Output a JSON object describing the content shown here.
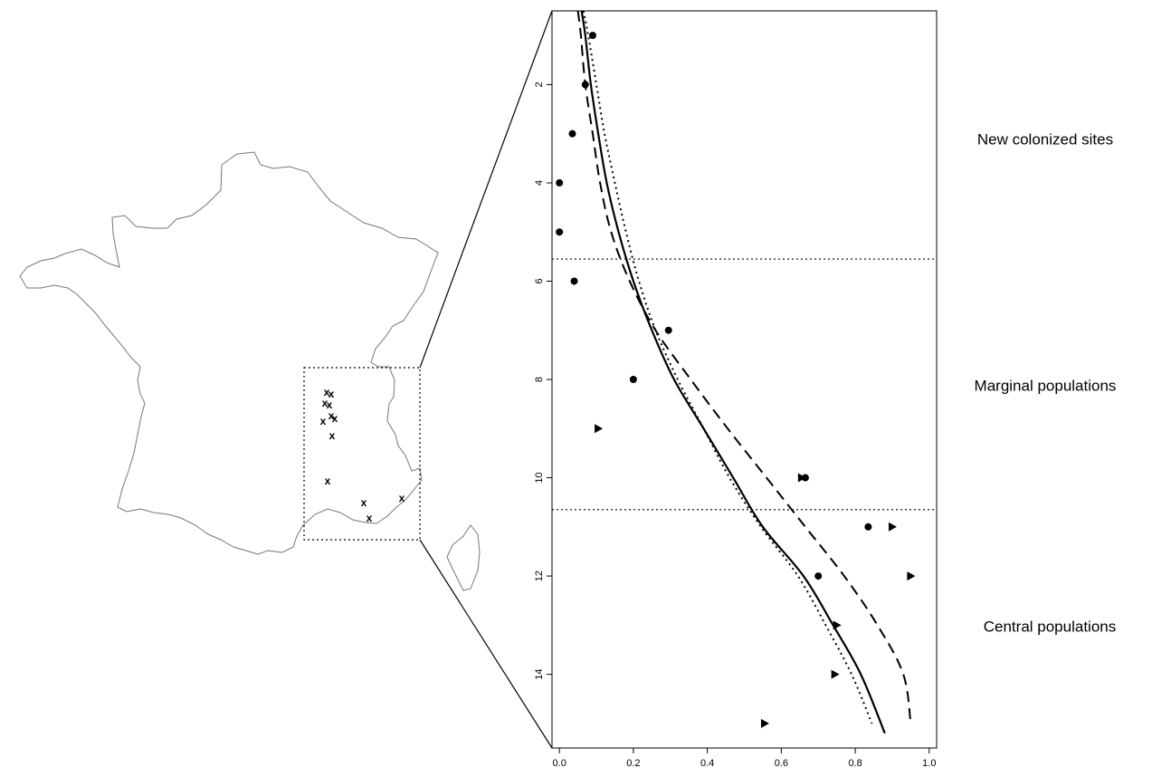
{
  "region_labels": {
    "top": "New colonized sites",
    "middle": "Marginal populations",
    "bottom": "Central populations"
  },
  "map": {
    "sampling_site_marker": "x"
  },
  "chart_data": {
    "type": "scatter",
    "xlim": [
      -0.02,
      1.02
    ],
    "ylim": [
      15.5,
      0.5
    ],
    "y_reversed": true,
    "x_ticks": [
      "0.0",
      "0.2",
      "0.4",
      "0.6",
      "0.8",
      "1.0"
    ],
    "x_tick_values": [
      0,
      0.2,
      0.4,
      0.6,
      0.8,
      1.0
    ],
    "y_ticks": [
      "2",
      "4",
      "6",
      "8",
      "10",
      "12",
      "14"
    ],
    "y_tick_values": [
      2,
      4,
      6,
      8,
      10,
      12,
      14
    ],
    "region_boundaries": [
      5.55,
      10.65
    ],
    "series": [
      {
        "marker": "circle",
        "points": [
          [
            0.09,
            1
          ],
          [
            0.07,
            2
          ],
          [
            0.035,
            3
          ],
          [
            0.0,
            4
          ],
          [
            0.0,
            5
          ],
          [
            0.04,
            6
          ],
          [
            0.295,
            7
          ],
          [
            0.2,
            8
          ],
          [
            0.665,
            10
          ],
          [
            0.835,
            11
          ],
          [
            0.7,
            12
          ]
        ]
      },
      {
        "marker": "triangle",
        "points": [
          [
            0.105,
            9
          ],
          [
            0.655,
            10
          ],
          [
            0.9,
            11
          ],
          [
            0.95,
            12
          ],
          [
            0.75,
            13
          ],
          [
            0.745,
            14
          ],
          [
            0.555,
            15
          ]
        ]
      }
    ],
    "curves": [
      {
        "style": "solid",
        "points": [
          [
            0.06,
            0.5
          ],
          [
            0.07,
            1
          ],
          [
            0.085,
            2
          ],
          [
            0.105,
            3
          ],
          [
            0.128,
            4
          ],
          [
            0.16,
            5
          ],
          [
            0.2,
            6
          ],
          [
            0.25,
            7
          ],
          [
            0.31,
            8
          ],
          [
            0.39,
            9
          ],
          [
            0.47,
            10
          ],
          [
            0.55,
            11
          ],
          [
            0.66,
            12
          ],
          [
            0.74,
            13
          ],
          [
            0.815,
            14
          ],
          [
            0.88,
            15.2
          ]
        ]
      },
      {
        "style": "dashed",
        "points": [
          [
            0.05,
            0.5
          ],
          [
            0.058,
            1
          ],
          [
            0.07,
            2
          ],
          [
            0.09,
            3
          ],
          [
            0.11,
            4
          ],
          [
            0.14,
            5
          ],
          [
            0.19,
            6
          ],
          [
            0.26,
            7
          ],
          [
            0.355,
            8
          ],
          [
            0.455,
            9
          ],
          [
            0.56,
            10
          ],
          [
            0.665,
            11
          ],
          [
            0.77,
            12
          ],
          [
            0.86,
            13
          ],
          [
            0.93,
            14
          ],
          [
            0.95,
            15
          ]
        ]
      },
      {
        "style": "dotted",
        "points": [
          [
            0.065,
            0.5
          ],
          [
            0.078,
            1
          ],
          [
            0.1,
            2
          ],
          [
            0.122,
            3
          ],
          [
            0.15,
            4
          ],
          [
            0.18,
            5
          ],
          [
            0.215,
            6
          ],
          [
            0.26,
            7
          ],
          [
            0.32,
            8
          ],
          [
            0.39,
            9
          ],
          [
            0.46,
            10
          ],
          [
            0.545,
            11
          ],
          [
            0.645,
            12
          ],
          [
            0.72,
            13
          ],
          [
            0.79,
            14
          ],
          [
            0.845,
            15
          ]
        ]
      }
    ]
  }
}
